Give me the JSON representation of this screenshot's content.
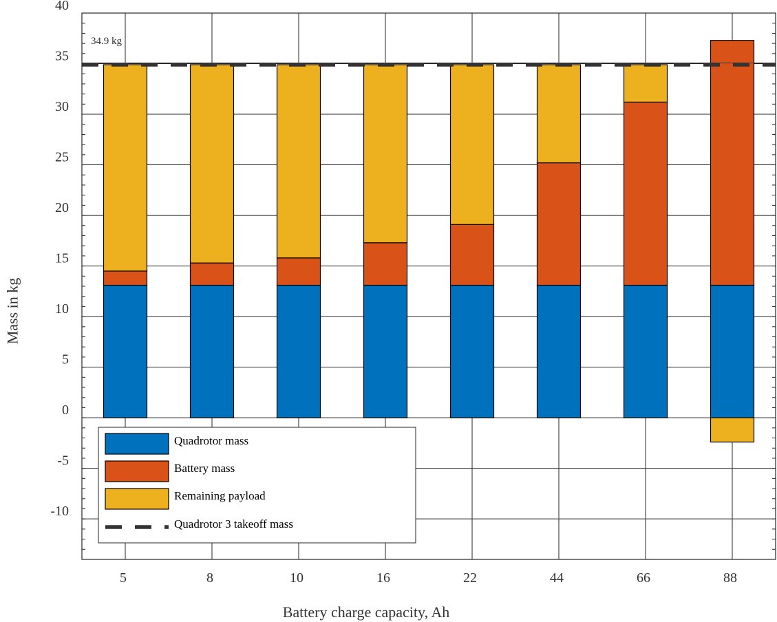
{
  "chart_data": {
    "type": "bar",
    "stacked": true,
    "xlabel": "Battery charge capacity, Ah",
    "ylabel": "Mass in kg",
    "ylim": [
      -14,
      40
    ],
    "yticks": [
      40,
      35,
      30,
      25,
      20,
      15,
      10,
      5,
      0,
      -5,
      -10
    ],
    "yminor_step": 1,
    "grid": true,
    "categories": [
      "5",
      "8",
      "10",
      "16",
      "22",
      "44",
      "66",
      "88"
    ],
    "series": [
      {
        "name": "Quadrotor mass",
        "color": "#0072BD",
        "values": [
          13.1,
          13.1,
          13.1,
          13.1,
          13.1,
          13.1,
          13.1,
          13.1
        ]
      },
      {
        "name": "Battery mass",
        "color": "#D95319",
        "values": [
          1.4,
          2.2,
          2.7,
          4.2,
          6.0,
          12.1,
          18.1,
          24.2
        ]
      },
      {
        "name": "Remaining payload",
        "color": "#EDB120",
        "values": [
          20.4,
          19.6,
          19.1,
          17.6,
          15.8,
          9.7,
          3.7,
          -2.4
        ]
      }
    ],
    "reference_line": {
      "name": "Quadrotor 3 takeoff mass",
      "value": 34.9,
      "label": "34.9 kg",
      "color": "#333333",
      "style": "dashed"
    },
    "legend": {
      "position": "bottom-left",
      "entries": [
        "Quadrotor mass",
        "Battery mass",
        "Remaining payload",
        "Quadrotor 3 takeoff mass"
      ]
    }
  }
}
